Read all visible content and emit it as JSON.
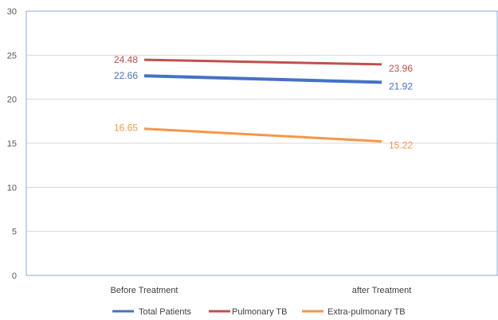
{
  "chart_data": {
    "type": "line",
    "categories": [
      "Before Treatment",
      "after Treatment"
    ],
    "ylim": [
      0,
      30
    ],
    "yticks": [
      0,
      5,
      10,
      15,
      20,
      25,
      30
    ],
    "grid": true,
    "legend_position": "bottom",
    "series": [
      {
        "name": "Total Patients",
        "values": [
          22.66,
          21.92
        ],
        "labels": [
          "22.66",
          "21.92"
        ],
        "color": "#4472C4"
      },
      {
        "name": "Pulmonary TB",
        "values": [
          24.48,
          23.96
        ],
        "labels": [
          "24.48",
          "23.96"
        ],
        "color": "#C0504D"
      },
      {
        "name": "Extra-pulmonary TB",
        "values": [
          16.65,
          15.22
        ],
        "labels": [
          "16.65",
          "15.22"
        ],
        "color": "#F79646"
      }
    ],
    "colors": {
      "axis": "#8EA9DB",
      "grid": "#D9D9D9",
      "tick_text": "#595959"
    }
  }
}
